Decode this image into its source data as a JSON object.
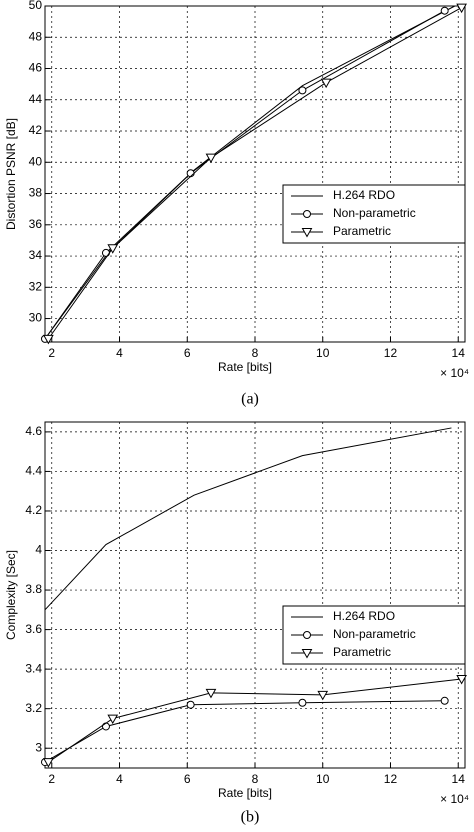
{
  "chart_data": [
    {
      "type": "line",
      "caption": "(a)",
      "xlabel": "Rate [bits]",
      "ylabel": "Distortion PSNR [dB]",
      "x_scale_label": "× 10⁴",
      "xlim": [
        1.8,
        14.2
      ],
      "ylim": [
        28.5,
        50
      ],
      "xticks": [
        2,
        4,
        6,
        8,
        10,
        12,
        14
      ],
      "yticks": [
        30,
        32,
        34,
        36,
        38,
        40,
        42,
        44,
        46,
        48,
        50
      ],
      "grid": true,
      "legend": "center right",
      "series": [
        {
          "name": "H.264 RDO",
          "color": "#000000",
          "marker": "none",
          "x": [
            1.8,
            3.7,
            6.2,
            9.4,
            13.9
          ],
          "values": [
            28.7,
            34.3,
            39.5,
            44.9,
            50
          ]
        },
        {
          "name": "Non-parametric",
          "color": "#000000",
          "marker": "circle",
          "x": [
            1.8,
            3.6,
            6.1,
            9.4,
            13.6
          ],
          "values": [
            28.7,
            34.2,
            39.3,
            44.6,
            49.7
          ]
        },
        {
          "name": "Parametric",
          "color": "#000000",
          "marker": "triangle-down",
          "x": [
            1.9,
            3.8,
            6.7,
            10.1,
            14.1
          ],
          "values": [
            28.7,
            34.5,
            40.3,
            45.1,
            49.9
          ]
        }
      ]
    },
    {
      "type": "line",
      "caption": "(b)",
      "xlabel": "Rate [bits]",
      "ylabel": "Complexity [Sec]",
      "x_scale_label": "× 10⁴",
      "xlim": [
        1.8,
        14.2
      ],
      "ylim": [
        2.9,
        4.65
      ],
      "xticks": [
        2,
        4,
        6,
        8,
        10,
        12,
        14
      ],
      "yticks": [
        3,
        3.2,
        3.4,
        3.6,
        3.8,
        4,
        4.2,
        4.4,
        4.6
      ],
      "grid": true,
      "legend": "center right",
      "series": [
        {
          "name": "H.264 RDO",
          "color": "#000000",
          "marker": "none",
          "x": [
            1.8,
            3.6,
            6.2,
            9.4,
            13.8
          ],
          "values": [
            3.7,
            4.03,
            4.28,
            4.48,
            4.62
          ]
        },
        {
          "name": "Non-parametric",
          "color": "#000000",
          "marker": "circle",
          "x": [
            1.8,
            3.6,
            6.1,
            9.4,
            13.6
          ],
          "values": [
            2.93,
            3.11,
            3.22,
            3.23,
            3.24
          ]
        },
        {
          "name": "Parametric",
          "color": "#000000",
          "marker": "triangle-down",
          "x": [
            1.9,
            3.8,
            6.7,
            10,
            14.1
          ],
          "values": [
            2.93,
            3.15,
            3.28,
            3.27,
            3.35
          ]
        }
      ]
    }
  ]
}
